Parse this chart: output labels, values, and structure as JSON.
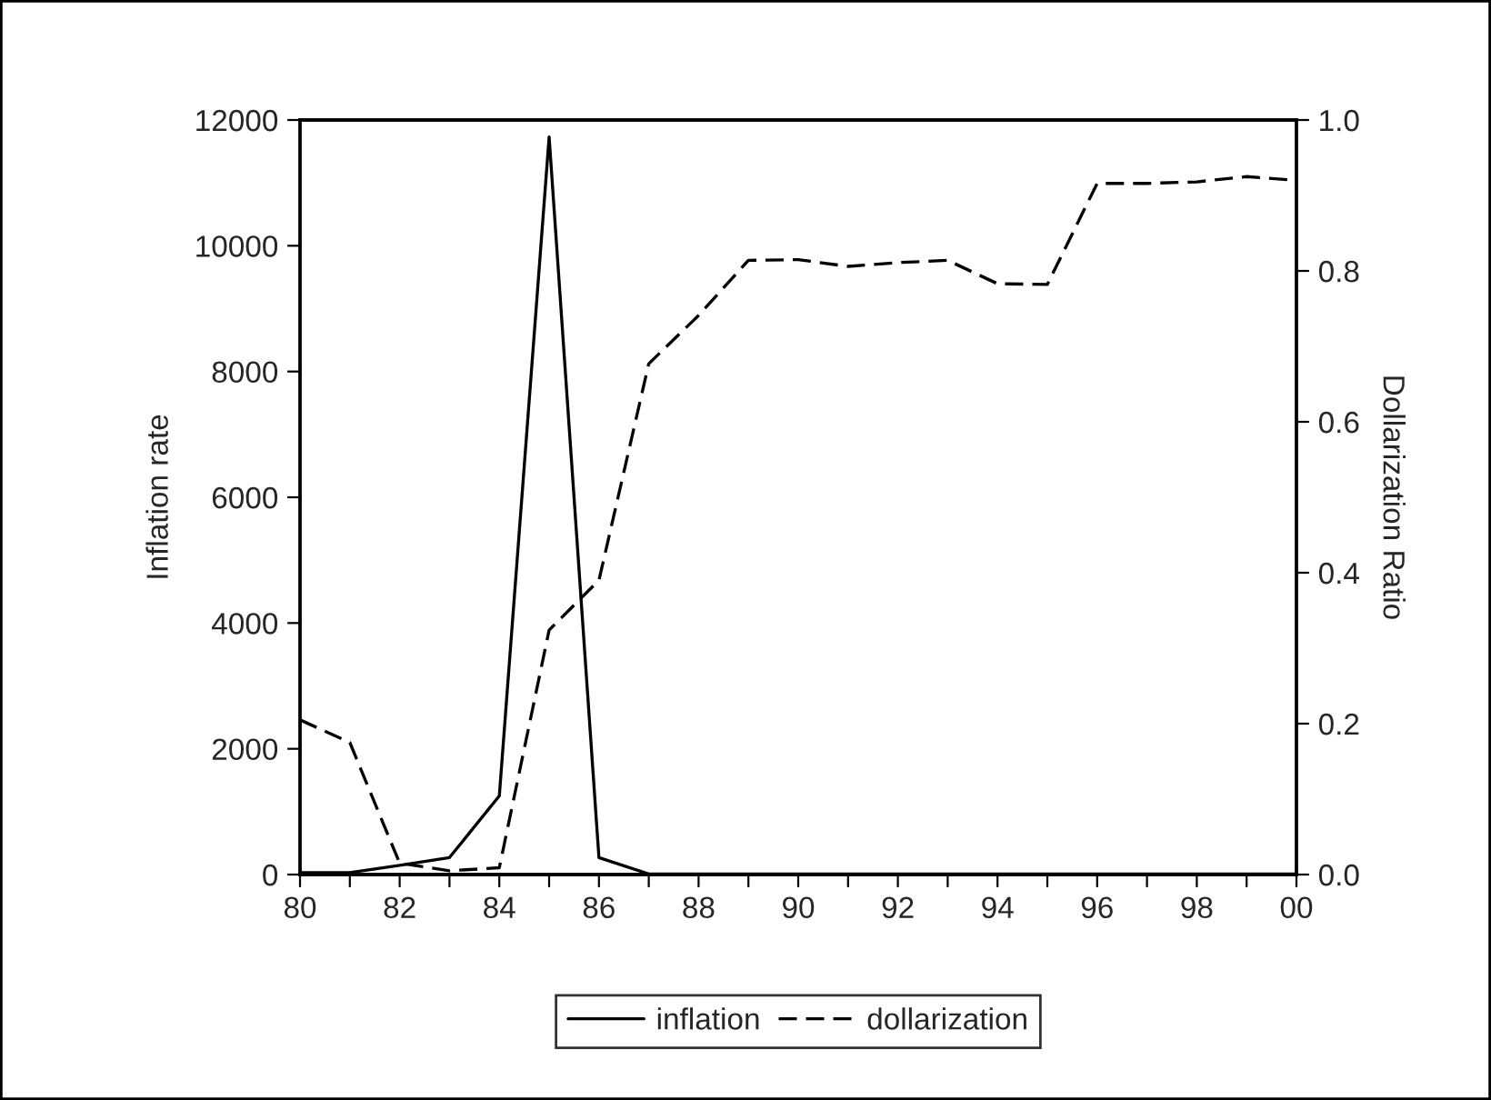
{
  "chart_data": {
    "type": "line",
    "ylabel": "Inflation rate",
    "y2label": "Dollarization Ratio",
    "x": [
      1980,
      1981,
      1982,
      1983,
      1984,
      1985,
      1986,
      1987,
      1988,
      1989,
      1990,
      1991,
      1992,
      1993,
      1994,
      1995,
      1996,
      1997,
      1998,
      1999,
      2000
    ],
    "series": [
      {
        "name": "inflation",
        "color": "#000000",
        "line_style": "solid",
        "values": [
          30,
          30,
          145,
          270,
          1250,
          11730,
          270,
          10,
          10,
          10,
          10,
          10,
          10,
          10,
          10,
          10,
          10,
          10,
          10,
          10,
          10
        ]
      },
      {
        "name": "dollarization",
        "color": "#000000",
        "line_style": "dashed",
        "axis": "y2",
        "values": [
          0.205,
          0.175,
          0.015,
          0.005,
          0.009,
          0.324,
          0.39,
          0.677,
          0.741,
          0.814,
          0.815,
          0.806,
          0.811,
          0.814,
          0.783,
          0.782,
          0.916,
          0.916,
          0.918,
          0.925,
          0.92
        ]
      }
    ],
    "xlim": [
      1980,
      2000
    ],
    "xticks": [
      {
        "value": 1980,
        "label": "80"
      },
      {
        "value": 1981,
        "label": null
      },
      {
        "value": 1982,
        "label": "82"
      },
      {
        "value": 1983,
        "label": null
      },
      {
        "value": 1984,
        "label": "84"
      },
      {
        "value": 1985,
        "label": null
      },
      {
        "value": 1986,
        "label": "86"
      },
      {
        "value": 1987,
        "label": null
      },
      {
        "value": 1988,
        "label": "88"
      },
      {
        "value": 1989,
        "label": null
      },
      {
        "value": 1990,
        "label": "90"
      },
      {
        "value": 1991,
        "label": null
      },
      {
        "value": 1992,
        "label": "92"
      },
      {
        "value": 1993,
        "label": null
      },
      {
        "value": 1994,
        "label": "94"
      },
      {
        "value": 1995,
        "label": null
      },
      {
        "value": 1996,
        "label": "96"
      },
      {
        "value": 1997,
        "label": null
      },
      {
        "value": 1998,
        "label": "98"
      },
      {
        "value": 1999,
        "label": null
      },
      {
        "value": 2000,
        "label": "00"
      }
    ],
    "ylim": [
      0,
      12000
    ],
    "yticks": [
      0,
      2000,
      4000,
      6000,
      8000,
      10000,
      12000
    ],
    "y2lim": [
      0,
      1.0
    ],
    "y2ticks": [
      {
        "value": 0,
        "label": "0.0"
      },
      {
        "value": 0.2,
        "label": "0.2"
      },
      {
        "value": 0.4,
        "label": "0.4"
      },
      {
        "value": 0.6,
        "label": "0.6"
      },
      {
        "value": 0.8,
        "label": "0.8"
      },
      {
        "value": 1.0,
        "label": "1.0"
      }
    ],
    "grid": false,
    "legend": "bottom"
  }
}
